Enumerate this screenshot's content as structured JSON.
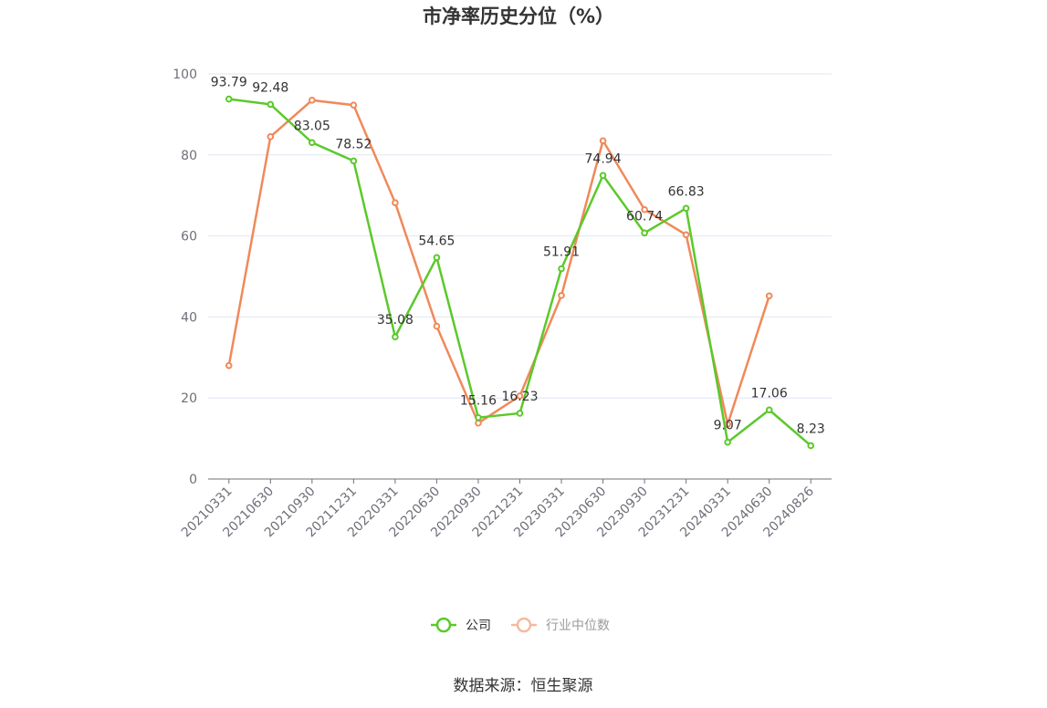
{
  "chart_data": {
    "type": "line",
    "title": "市净率历史分位（%）",
    "categories": [
      "20210331",
      "20210630",
      "20210930",
      "20211231",
      "20220331",
      "20220630",
      "20220930",
      "20221231",
      "20230331",
      "20230630",
      "20230930",
      "20231231",
      "20240331",
      "20240630",
      "20240826"
    ],
    "ylim": [
      0,
      100
    ],
    "yticks": [
      0,
      20,
      40,
      60,
      80,
      100
    ],
    "grid": true,
    "legend_position": "bottom",
    "series": [
      {
        "name": "公司",
        "color": "#5bc92a",
        "values": [
          93.79,
          92.48,
          83.05,
          78.52,
          35.08,
          54.65,
          15.16,
          16.23,
          51.91,
          74.94,
          60.74,
          66.83,
          9.07,
          17.06,
          8.23
        ],
        "labels": [
          "93.79",
          "92.48",
          "83.05",
          "78.52",
          "35.08",
          "54.65",
          "15.16",
          "16.23",
          "51.91",
          "74.94",
          "60.74",
          "66.83",
          "9.07",
          "17.06",
          "8.23"
        ]
      },
      {
        "name": "行业中位数",
        "color": "#f0895a",
        "legend_color": "#f6b9a0",
        "values": [
          28.0,
          84.5,
          93.5,
          92.3,
          68.2,
          37.7,
          13.8,
          20.5,
          45.3,
          83.5,
          66.5,
          60.3,
          13.5,
          45.2,
          null
        ]
      }
    ],
    "source": "数据来源：恒生聚源"
  }
}
